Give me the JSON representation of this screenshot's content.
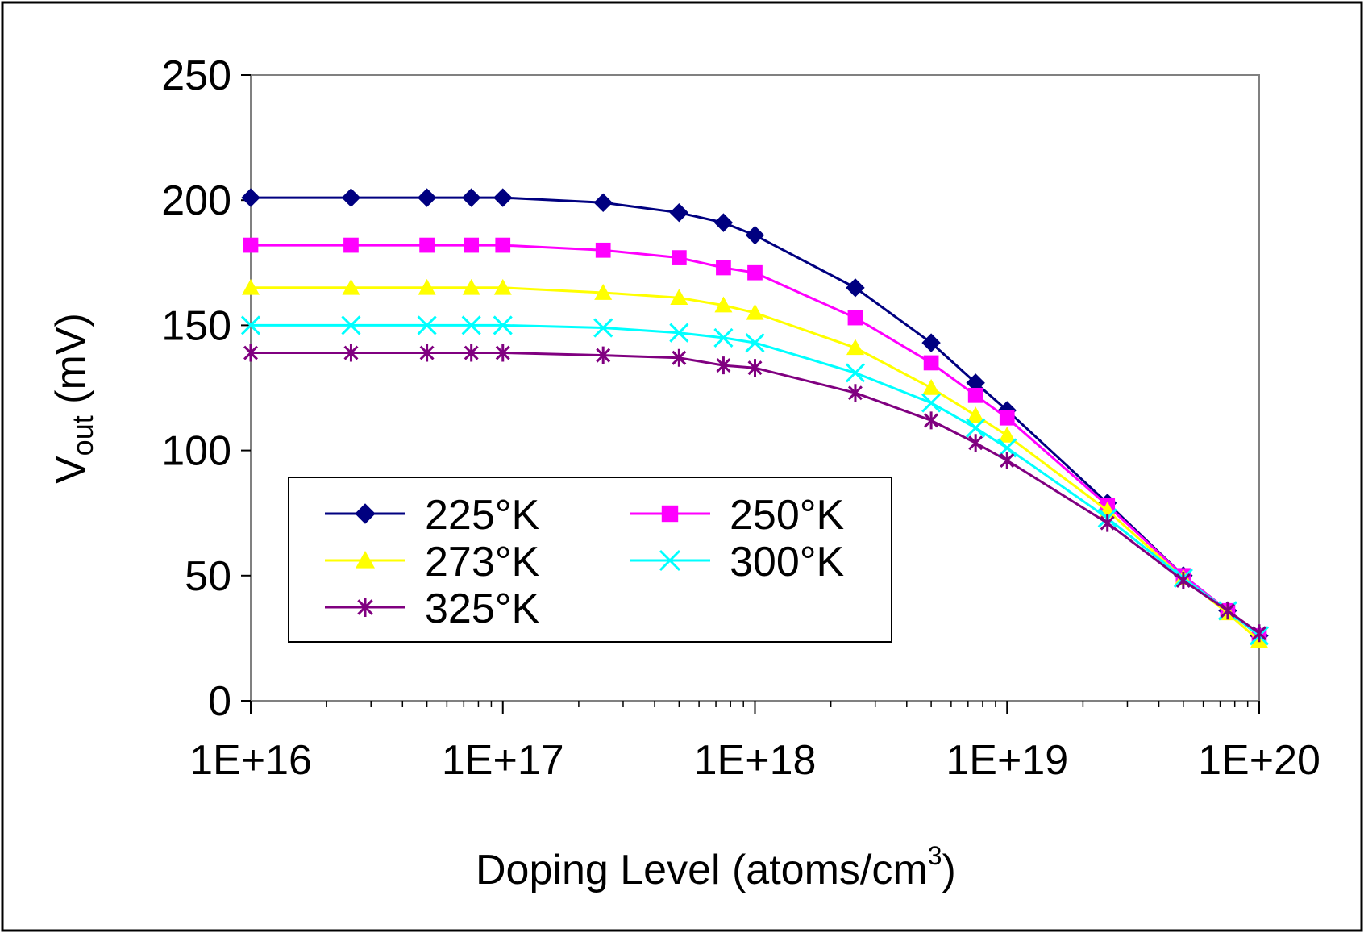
{
  "chart_data": {
    "type": "line",
    "x_scale": "log",
    "xlabel": "Doping Level (atoms/cm",
    "xlabel_sup": "3",
    "xlabel_close": ")",
    "ylabel_main": "V",
    "ylabel_sub": "out",
    "ylabel_rest": " (mV)",
    "ylim": [
      0,
      250
    ],
    "xlim": [
      1e+16,
      1e+20
    ],
    "y_ticks": [
      {
        "value": 0,
        "label": "0"
      },
      {
        "value": 50,
        "label": "50"
      },
      {
        "value": 100,
        "label": "100"
      },
      {
        "value": 150,
        "label": "150"
      },
      {
        "value": 200,
        "label": "200"
      },
      {
        "value": 250,
        "label": "250"
      }
    ],
    "x_ticks": [
      {
        "value": 1e+16,
        "label": "1E+16"
      },
      {
        "value": 1e+17,
        "label": "1E+17"
      },
      {
        "value": 1e+18,
        "label": "1E+18"
      },
      {
        "value": 1e+19,
        "label": "1E+19"
      },
      {
        "value": 1e+20,
        "label": "1E+20"
      }
    ],
    "x": [
      1e+16,
      2.5e+16,
      5e+16,
      7.5e+16,
      1e+17,
      2.5e+17,
      5e+17,
      7.5e+17,
      1e+18,
      2.5e+18,
      5e+18,
      7.5e+18,
      1e+19,
      2.5e+19,
      5e+19,
      7.5e+19,
      1e+20
    ],
    "series": [
      {
        "name": "225°K",
        "color": "#000080",
        "marker": "diamond",
        "values": [
          201,
          201,
          201,
          201,
          201,
          199,
          195,
          191,
          186,
          165,
          143,
          127,
          116,
          79,
          50,
          36,
          26
        ]
      },
      {
        "name": "250°K",
        "color": "#FF00FF",
        "marker": "square",
        "values": [
          182,
          182,
          182,
          182,
          182,
          180,
          177,
          173,
          171,
          153,
          135,
          122,
          113,
          78,
          50,
          36,
          26
        ]
      },
      {
        "name": "273°K",
        "color": "#FFFF00",
        "marker": "triangle",
        "values": [
          165,
          165,
          165,
          165,
          165,
          163,
          161,
          158,
          155,
          141,
          125,
          114,
          106,
          76,
          49,
          35,
          24
        ]
      },
      {
        "name": "300°K",
        "color": "#00FFFF",
        "marker": "x",
        "values": [
          150,
          150,
          150,
          150,
          150,
          149,
          147,
          145,
          143,
          131,
          119,
          109,
          101,
          73,
          49,
          36,
          26
        ]
      },
      {
        "name": "325°K",
        "color": "#800080",
        "marker": "star",
        "values": [
          139,
          139,
          139,
          139,
          139,
          138,
          137,
          134,
          133,
          123,
          112,
          103,
          96,
          71,
          48,
          36,
          27
        ]
      }
    ],
    "legend_position": "lower-left inside plot"
  }
}
